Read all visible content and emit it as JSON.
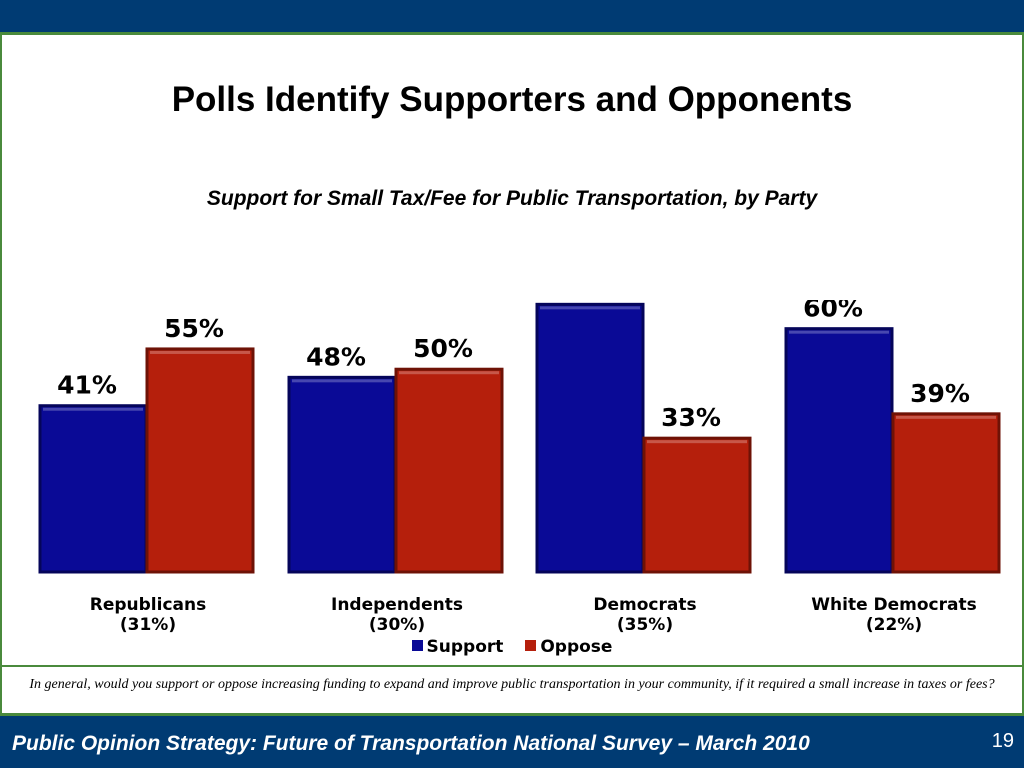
{
  "title": "Polls Identify Supporters and Opponents",
  "subtitle": "Support for Small Tax/Fee for Public Transportation, by Party",
  "colors": {
    "support": "#0a0a96",
    "oppose": "#b51f0c",
    "brand": "#003b73",
    "accent": "#4a8a3c"
  },
  "chart_data": {
    "type": "bar",
    "title": "Support for Small Tax/Fee for Public Transportation, by Party",
    "categories": [
      "Republicans",
      "Independents",
      "Democrats",
      "White Democrats"
    ],
    "category_sublabels": [
      "(31%)",
      "(30%)",
      "(35%)",
      "(22%)"
    ],
    "series": [
      {
        "name": "Support",
        "values": [
          41,
          48,
          66,
          60
        ]
      },
      {
        "name": "Oppose",
        "values": [
          55,
          50,
          33,
          39
        ]
      }
    ],
    "value_suffix": "%",
    "ylim": [
      0,
      72
    ],
    "grid": false,
    "legend_position": "bottom"
  },
  "legend": {
    "items": [
      "Support",
      "Oppose"
    ]
  },
  "note": "In general, would you support or oppose increasing funding to expand and improve public transportation in your community, if it required a small increase in taxes or fees?",
  "footer": {
    "text": "Public Opinion Strategy: Future of Transportation National Survey – March 2010",
    "page_number": "19"
  }
}
